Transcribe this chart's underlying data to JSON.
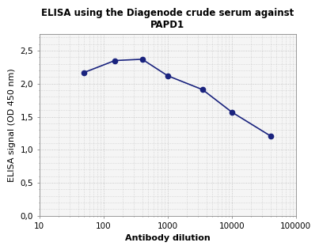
{
  "title_line1": "ELISA using the Diagenode crude serum against",
  "title_line2": "PAPD1",
  "xlabel": "Antibody dilution",
  "ylabel": "ELISA signal (OD 450 nm)",
  "x_data": [
    50,
    150,
    400,
    1000,
    3500,
    10000,
    40000
  ],
  "y_data": [
    2.17,
    2.35,
    2.37,
    2.12,
    1.91,
    1.57,
    1.21
  ],
  "line_color": "#1a237e",
  "marker_color": "#1a237e",
  "marker_style": "o",
  "marker_size": 4.5,
  "line_width": 1.2,
  "xlim": [
    10,
    100000
  ],
  "ylim": [
    0.0,
    2.75
  ],
  "yticks": [
    0.0,
    0.5,
    1.0,
    1.5,
    2.0,
    2.5
  ],
  "ytick_labels": [
    "0,0",
    "0,5",
    "1,0",
    "1,5",
    "2,0",
    "2,5"
  ],
  "xticks": [
    10,
    100,
    1000,
    10000,
    100000
  ],
  "xtick_labels": [
    "10",
    "100",
    "1000",
    "10000",
    "100000"
  ],
  "title_fontsize": 8.5,
  "axis_label_fontsize": 8,
  "tick_fontsize": 7.5,
  "background_color": "#ffffff",
  "plot_bg_color": "#f5f5f5",
  "grid_color": "#bbbbbb"
}
